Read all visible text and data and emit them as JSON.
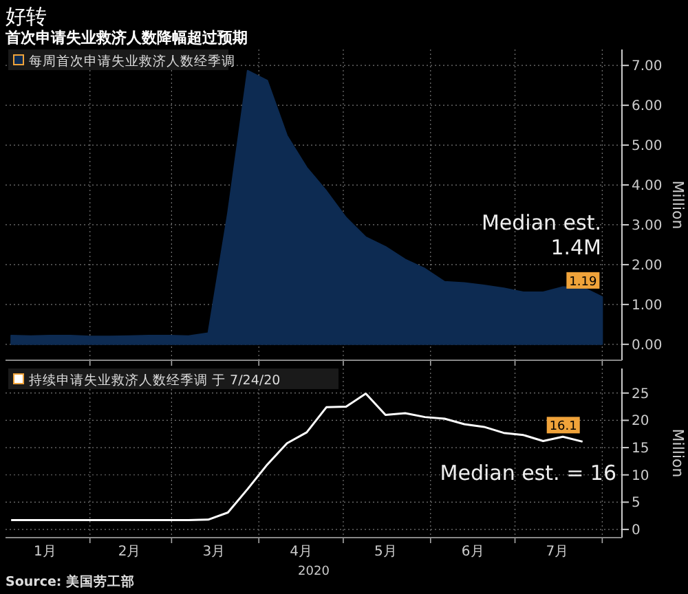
{
  "chart_data": [
    {
      "type": "area",
      "title": "好转",
      "subtitle": "首次申请失业救济人数降幅超过预期",
      "ylabel": "Million",
      "x": [
        "2020-01-04",
        "2020-01-11",
        "2020-01-18",
        "2020-01-25",
        "2020-02-01",
        "2020-02-08",
        "2020-02-15",
        "2020-02-22",
        "2020-02-29",
        "2020-03-07",
        "2020-03-14",
        "2020-03-21",
        "2020-03-28",
        "2020-04-04",
        "2020-04-11",
        "2020-04-18",
        "2020-04-25",
        "2020-05-02",
        "2020-05-09",
        "2020-05-16",
        "2020-05-23",
        "2020-05-30",
        "2020-06-06",
        "2020-06-13",
        "2020-06-20",
        "2020-06-27",
        "2020-07-04",
        "2020-07-11",
        "2020-07-18",
        "2020-07-25",
        "2020-08-01"
      ],
      "series": [
        {
          "name": "每周首次申请失业救济人数经季调",
          "color": "#0d2b52",
          "values": [
            0.22,
            0.21,
            0.22,
            0.22,
            0.2,
            0.2,
            0.21,
            0.22,
            0.22,
            0.21,
            0.28,
            3.3,
            6.87,
            6.62,
            5.24,
            4.44,
            3.85,
            3.18,
            2.69,
            2.45,
            2.13,
            1.9,
            1.57,
            1.54,
            1.48,
            1.41,
            1.31,
            1.31,
            1.44,
            1.43,
            1.19
          ],
          "value_labels": [
            null,
            null,
            null,
            null,
            null,
            null,
            null,
            null,
            null,
            null,
            null,
            null,
            null,
            null,
            null,
            null,
            null,
            null,
            null,
            null,
            null,
            null,
            null,
            null,
            null,
            null,
            null,
            null,
            null,
            null,
            "1.19"
          ]
        }
      ],
      "xlim": [
        "2020-01-02",
        "2020-08-08"
      ],
      "xticks": [
        {
          "value": "2020-02-01",
          "label": null
        },
        {
          "value": "2020-03-01",
          "label": null
        },
        {
          "value": "2020-04-01",
          "label": null
        },
        {
          "value": "2020-05-01",
          "label": null
        },
        {
          "value": "2020-06-01",
          "label": null
        },
        {
          "value": "2020-07-01",
          "label": null
        },
        {
          "value": "2020-08-01",
          "label": null
        }
      ],
      "ylim": [
        -0.4,
        7.4
      ],
      "yticks": [
        {
          "value": 0,
          "label": "0.00"
        },
        {
          "value": 1,
          "label": "1.00"
        },
        {
          "value": 2,
          "label": "2.00"
        },
        {
          "value": 3,
          "label": "3.00"
        },
        {
          "value": 4,
          "label": "4.00"
        },
        {
          "value": 5,
          "label": "5.00"
        },
        {
          "value": 6,
          "label": "6.00"
        },
        {
          "value": 7,
          "label": "7.00"
        }
      ],
      "grid": true,
      "legend": "top left",
      "tick_labels": "y",
      "annotations": [
        "Median est. 1.4M"
      ]
    },
    {
      "type": "line",
      "xlabel": "2020",
      "ylabel": "Million",
      "x": [
        "2020-01-04",
        "2020-01-11",
        "2020-01-18",
        "2020-01-25",
        "2020-02-01",
        "2020-02-08",
        "2020-02-15",
        "2020-02-22",
        "2020-02-29",
        "2020-03-07",
        "2020-03-14",
        "2020-03-21",
        "2020-03-28",
        "2020-04-04",
        "2020-04-11",
        "2020-04-18",
        "2020-04-25",
        "2020-05-02",
        "2020-05-09",
        "2020-05-16",
        "2020-05-23",
        "2020-05-30",
        "2020-06-06",
        "2020-06-13",
        "2020-06-20",
        "2020-06-27",
        "2020-07-04",
        "2020-07-11",
        "2020-07-18",
        "2020-07-25"
      ],
      "series": [
        {
          "name": "持续申请失业救济人数经季调 于 7/24/20",
          "color": "#ffffff",
          "values": [
            1.7,
            1.7,
            1.7,
            1.7,
            1.7,
            1.7,
            1.7,
            1.7,
            1.7,
            1.7,
            1.8,
            3.1,
            7.4,
            11.9,
            15.8,
            17.8,
            22.4,
            22.5,
            24.9,
            21.0,
            21.3,
            20.6,
            20.3,
            19.3,
            18.8,
            17.7,
            17.3,
            16.2,
            17.0,
            16.1
          ],
          "value_labels": [
            null,
            null,
            null,
            null,
            null,
            null,
            null,
            null,
            null,
            null,
            null,
            null,
            null,
            null,
            null,
            null,
            null,
            null,
            null,
            null,
            null,
            null,
            null,
            null,
            null,
            null,
            null,
            null,
            null,
            "16.1"
          ]
        }
      ],
      "xlim": [
        "2020-01-02",
        "2020-08-08"
      ],
      "xticks": [
        {
          "value": "2020-01-16",
          "label": "1月"
        },
        {
          "value": "2020-02-01",
          "label": null
        },
        {
          "value": "2020-02-15",
          "label": "2月"
        },
        {
          "value": "2020-03-01",
          "label": null
        },
        {
          "value": "2020-03-16",
          "label": "3月"
        },
        {
          "value": "2020-04-01",
          "label": null
        },
        {
          "value": "2020-04-16",
          "label": "4月"
        },
        {
          "value": "2020-05-01",
          "label": null
        },
        {
          "value": "2020-05-16",
          "label": "5月"
        },
        {
          "value": "2020-06-01",
          "label": null
        },
        {
          "value": "2020-06-16",
          "label": "6月"
        },
        {
          "value": "2020-07-01",
          "label": null
        },
        {
          "value": "2020-07-16",
          "label": "7月"
        },
        {
          "value": "2020-08-01",
          "label": null
        }
      ],
      "ylim": [
        -1.5,
        29.5
      ],
      "yticks": [
        0,
        5,
        10,
        15,
        20,
        25
      ],
      "grid": true,
      "legend": "top left",
      "annotations": [
        "Median est. = 16",
        "Source: 美国劳工部"
      ]
    }
  ]
}
